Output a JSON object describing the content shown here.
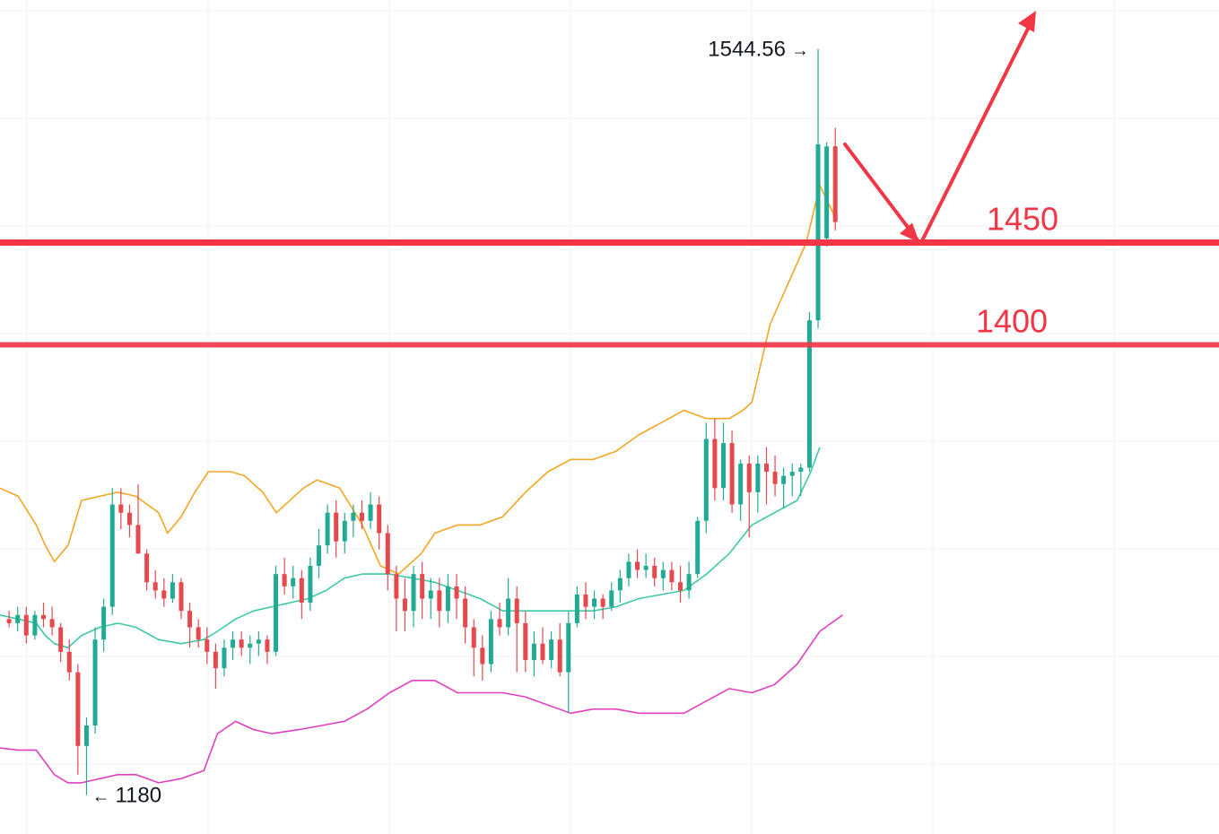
{
  "chart_data": {
    "type": "candlestick",
    "ylim": [
      1175,
      1558
    ],
    "x_count": 97,
    "grid": true,
    "colors": {
      "up": "#26a69a",
      "up_fill": "#22ab94",
      "down": "#e5484d",
      "upper_band": "#f5a623",
      "middle_band": "#3cc9a7",
      "lower_band": "#e040c0",
      "level_line": "#f23645",
      "arrow": "#f23645",
      "grid": "#eef0f3",
      "text": "#131722"
    },
    "candles": [
      [
        1266,
        1270,
        1262,
        1264
      ],
      [
        1264,
        1272,
        1260,
        1268
      ],
      [
        1268,
        1272,
        1254,
        1258
      ],
      [
        1258,
        1270,
        1256,
        1268
      ],
      [
        1268,
        1274,
        1262,
        1266
      ],
      [
        1266,
        1272,
        1258,
        1262
      ],
      [
        1262,
        1264,
        1245,
        1250
      ],
      [
        1250,
        1256,
        1236,
        1240
      ],
      [
        1240,
        1244,
        1190,
        1204
      ],
      [
        1204,
        1218,
        1180,
        1214
      ],
      [
        1214,
        1262,
        1210,
        1256
      ],
      [
        1256,
        1276,
        1250,
        1272
      ],
      [
        1272,
        1330,
        1268,
        1322
      ],
      [
        1322,
        1330,
        1310,
        1318
      ],
      [
        1318,
        1322,
        1306,
        1312
      ],
      [
        1312,
        1332,
        1298,
        1298
      ],
      [
        1298,
        1300,
        1280,
        1284
      ],
      [
        1284,
        1290,
        1276,
        1280
      ],
      [
        1280,
        1286,
        1272,
        1276
      ],
      [
        1276,
        1288,
        1274,
        1284
      ],
      [
        1284,
        1286,
        1266,
        1270
      ],
      [
        1270,
        1274,
        1252,
        1262
      ],
      [
        1262,
        1266,
        1252,
        1256
      ],
      [
        1256,
        1262,
        1244,
        1250
      ],
      [
        1250,
        1254,
        1232,
        1242
      ],
      [
        1242,
        1256,
        1238,
        1252
      ],
      [
        1252,
        1260,
        1246,
        1256
      ],
      [
        1256,
        1260,
        1248,
        1252
      ],
      [
        1252,
        1258,
        1244,
        1254
      ],
      [
        1254,
        1260,
        1248,
        1256
      ],
      [
        1256,
        1258,
        1244,
        1250
      ],
      [
        1250,
        1292,
        1248,
        1288
      ],
      [
        1288,
        1296,
        1278,
        1282
      ],
      [
        1282,
        1292,
        1276,
        1286
      ],
      [
        1286,
        1290,
        1266,
        1274
      ],
      [
        1274,
        1296,
        1270,
        1292
      ],
      [
        1292,
        1310,
        1286,
        1302
      ],
      [
        1302,
        1322,
        1298,
        1318
      ],
      [
        1318,
        1324,
        1296,
        1304
      ],
      [
        1304,
        1318,
        1298,
        1314
      ],
      [
        1314,
        1322,
        1306,
        1318
      ],
      [
        1318,
        1324,
        1310,
        1314
      ],
      [
        1314,
        1328,
        1310,
        1322
      ],
      [
        1322,
        1326,
        1300,
        1308
      ],
      [
        1308,
        1312,
        1280,
        1288
      ],
      [
        1288,
        1292,
        1260,
        1276
      ],
      [
        1276,
        1286,
        1260,
        1270
      ],
      [
        1270,
        1292,
        1262,
        1288
      ],
      [
        1288,
        1294,
        1266,
        1276
      ],
      [
        1276,
        1286,
        1266,
        1280
      ],
      [
        1280,
        1286,
        1262,
        1270
      ],
      [
        1270,
        1288,
        1264,
        1282
      ],
      [
        1282,
        1288,
        1266,
        1276
      ],
      [
        1276,
        1282,
        1254,
        1262
      ],
      [
        1262,
        1266,
        1238,
        1252
      ],
      [
        1252,
        1258,
        1236,
        1244
      ],
      [
        1244,
        1270,
        1240,
        1266
      ],
      [
        1266,
        1274,
        1258,
        1262
      ],
      [
        1262,
        1286,
        1258,
        1276
      ],
      [
        1276,
        1282,
        1240,
        1264
      ],
      [
        1264,
        1270,
        1240,
        1246
      ],
      [
        1246,
        1260,
        1238,
        1254
      ],
      [
        1254,
        1262,
        1244,
        1246
      ],
      [
        1246,
        1260,
        1242,
        1256
      ],
      [
        1256,
        1264,
        1238,
        1240
      ],
      [
        1240,
        1270,
        1220,
        1264
      ],
      [
        1264,
        1282,
        1262,
        1278
      ],
      [
        1278,
        1284,
        1266,
        1272
      ],
      [
        1272,
        1280,
        1266,
        1276
      ],
      [
        1276,
        1278,
        1266,
        1272
      ],
      [
        1272,
        1284,
        1270,
        1280
      ],
      [
        1280,
        1290,
        1274,
        1286
      ],
      [
        1286,
        1298,
        1282,
        1294
      ],
      [
        1294,
        1300,
        1286,
        1290
      ],
      [
        1290,
        1298,
        1286,
        1292
      ],
      [
        1292,
        1296,
        1282,
        1286
      ],
      [
        1286,
        1294,
        1280,
        1290
      ],
      [
        1290,
        1294,
        1280,
        1284
      ],
      [
        1284,
        1292,
        1274,
        1280
      ],
      [
        1280,
        1294,
        1276,
        1288
      ],
      [
        1288,
        1316,
        1286,
        1314
      ],
      [
        1314,
        1362,
        1308,
        1354
      ],
      [
        1354,
        1364,
        1324,
        1330
      ],
      [
        1330,
        1362,
        1324,
        1352
      ],
      [
        1352,
        1358,
        1318,
        1322
      ],
      [
        1322,
        1344,
        1314,
        1342
      ],
      [
        1342,
        1346,
        1306,
        1328
      ],
      [
        1328,
        1346,
        1318,
        1342
      ],
      [
        1342,
        1350,
        1322,
        1338
      ],
      [
        1338,
        1346,
        1326,
        1332
      ],
      [
        1332,
        1340,
        1320,
        1336
      ],
      [
        1336,
        1342,
        1326,
        1338
      ],
      [
        1338,
        1342,
        1326,
        1340
      ],
      [
        1340,
        1416,
        1338,
        1412
      ],
      [
        1412,
        1544.56,
        1408,
        1498
      ],
      [
        1452,
        1499,
        1448,
        1497
      ],
      [
        1497,
        1506,
        1456,
        1460
      ]
    ],
    "bands": {
      "upper": [
        [
          0,
          1330
        ],
        [
          4,
          1326
        ],
        [
          8,
          1312
        ],
        [
          10,
          1302
        ],
        [
          12,
          1294
        ],
        [
          15,
          1302
        ],
        [
          18,
          1324
        ],
        [
          22,
          1326
        ],
        [
          26,
          1328
        ],
        [
          30,
          1326
        ],
        [
          35,
          1318
        ],
        [
          37,
          1308
        ],
        [
          40,
          1316
        ],
        [
          43,
          1328
        ],
        [
          46,
          1338
        ],
        [
          51,
          1338
        ],
        [
          54,
          1336
        ],
        [
          58,
          1328
        ],
        [
          61,
          1318
        ],
        [
          67,
          1330
        ],
        [
          70,
          1334
        ],
        [
          75,
          1330
        ],
        [
          80,
          1312
        ],
        [
          84,
          1292
        ],
        [
          88,
          1288
        ],
        [
          93,
          1298
        ],
        [
          96,
          1308
        ],
        [
          101,
          1312
        ],
        [
          106,
          1312
        ],
        [
          111,
          1316
        ],
        [
          116,
          1328
        ],
        [
          121,
          1338
        ],
        [
          126,
          1344
        ],
        [
          131,
          1344
        ],
        [
          136,
          1348
        ],
        [
          141,
          1356
        ],
        [
          146,
          1362
        ],
        [
          151,
          1368
        ],
        [
          156,
          1364
        ],
        [
          161,
          1364
        ],
        [
          164,
          1368
        ],
        [
          166,
          1372
        ],
        [
          170,
          1410
        ],
        [
          174,
          1430
        ],
        [
          178,
          1450
        ],
        [
          181,
          1478
        ],
        [
          184,
          1464
        ]
      ],
      "middle": [
        [
          0,
          1268
        ],
        [
          4,
          1266
        ],
        [
          8,
          1264
        ],
        [
          10,
          1258
        ],
        [
          12,
          1254
        ],
        [
          15,
          1252
        ],
        [
          18,
          1258
        ],
        [
          22,
          1262
        ],
        [
          26,
          1264
        ],
        [
          30,
          1262
        ],
        [
          35,
          1256
        ],
        [
          40,
          1254
        ],
        [
          45,
          1256
        ],
        [
          48,
          1260
        ],
        [
          52,
          1266
        ],
        [
          56,
          1270
        ],
        [
          60,
          1272
        ],
        [
          64,
          1274
        ],
        [
          68,
          1276
        ],
        [
          72,
          1280
        ],
        [
          76,
          1286
        ],
        [
          80,
          1288
        ],
        [
          86,
          1288
        ],
        [
          91,
          1286
        ],
        [
          96,
          1284
        ],
        [
          101,
          1280
        ],
        [
          106,
          1276
        ],
        [
          111,
          1270
        ],
        [
          116,
          1270
        ],
        [
          121,
          1270
        ],
        [
          126,
          1270
        ],
        [
          131,
          1270
        ],
        [
          136,
          1272
        ],
        [
          141,
          1276
        ],
        [
          146,
          1278
        ],
        [
          151,
          1280
        ],
        [
          156,
          1288
        ],
        [
          161,
          1298
        ],
        [
          166,
          1312
        ],
        [
          171,
          1318
        ],
        [
          176,
          1324
        ],
        [
          179,
          1338
        ],
        [
          181,
          1350
        ]
      ],
      "lower": [
        [
          0,
          1203
        ],
        [
          4,
          1202
        ],
        [
          8,
          1202
        ],
        [
          10,
          1196
        ],
        [
          12,
          1190
        ],
        [
          15,
          1186
        ],
        [
          18,
          1186
        ],
        [
          22,
          1188
        ],
        [
          26,
          1190
        ],
        [
          30,
          1190
        ],
        [
          35,
          1186
        ],
        [
          40,
          1188
        ],
        [
          45,
          1192
        ],
        [
          48,
          1210
        ],
        [
          52,
          1216
        ],
        [
          56,
          1212
        ],
        [
          60,
          1210
        ],
        [
          66,
          1212
        ],
        [
          71,
          1214
        ],
        [
          76,
          1216
        ],
        [
          81,
          1222
        ],
        [
          86,
          1230
        ],
        [
          91,
          1236
        ],
        [
          96,
          1236
        ],
        [
          101,
          1230
        ],
        [
          106,
          1230
        ],
        [
          111,
          1230
        ],
        [
          116,
          1228
        ],
        [
          121,
          1224
        ],
        [
          126,
          1220
        ],
        [
          131,
          1222
        ],
        [
          136,
          1222
        ],
        [
          141,
          1220
        ],
        [
          146,
          1220
        ],
        [
          151,
          1220
        ],
        [
          156,
          1226
        ],
        [
          161,
          1232
        ],
        [
          166,
          1230
        ],
        [
          171,
          1234
        ],
        [
          176,
          1244
        ],
        [
          181,
          1260
        ],
        [
          186,
          1268
        ]
      ]
    },
    "levels": [
      {
        "value": 1450,
        "label": "1450"
      },
      {
        "value": 1400,
        "label": "1400"
      }
    ],
    "annotations": {
      "high_label": "1544.56",
      "low_label": "1180"
    }
  }
}
